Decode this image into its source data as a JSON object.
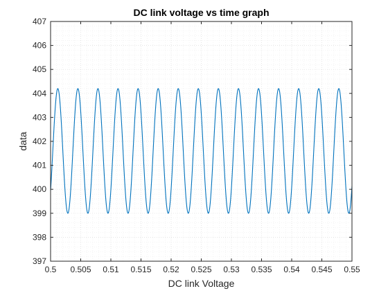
{
  "chart_data": {
    "type": "line",
    "title": "DC link voltage vs time graph",
    "xlabel": "DC link Voltage",
    "ylabel": "data",
    "xlim": [
      0.5,
      0.55
    ],
    "ylim": [
      397,
      407
    ],
    "xticks": [
      0.5,
      0.505,
      0.51,
      0.515,
      0.52,
      0.525,
      0.53,
      0.535,
      0.54,
      0.545,
      0.55
    ],
    "xtick_labels": [
      "0.5",
      "0.505",
      "0.51",
      "0.515",
      "0.52",
      "0.525",
      "0.53",
      "0.535",
      "0.54",
      "0.545",
      "0.55"
    ],
    "yticks": [
      397,
      398,
      399,
      400,
      401,
      402,
      403,
      404,
      405,
      406,
      407
    ],
    "ytick_labels": [
      "397",
      "398",
      "399",
      "400",
      "401",
      "402",
      "403",
      "404",
      "405",
      "406",
      "407"
    ],
    "grid": true,
    "minor_grid": true,
    "series": [
      {
        "color": "#0072bd",
        "waveform": "sinusoid",
        "x_start": 0.5,
        "x_end": 0.55,
        "y_max": 404.2,
        "y_min": 399.0,
        "period": 0.00333,
        "first_peak_x": 0.5012
      }
    ]
  }
}
